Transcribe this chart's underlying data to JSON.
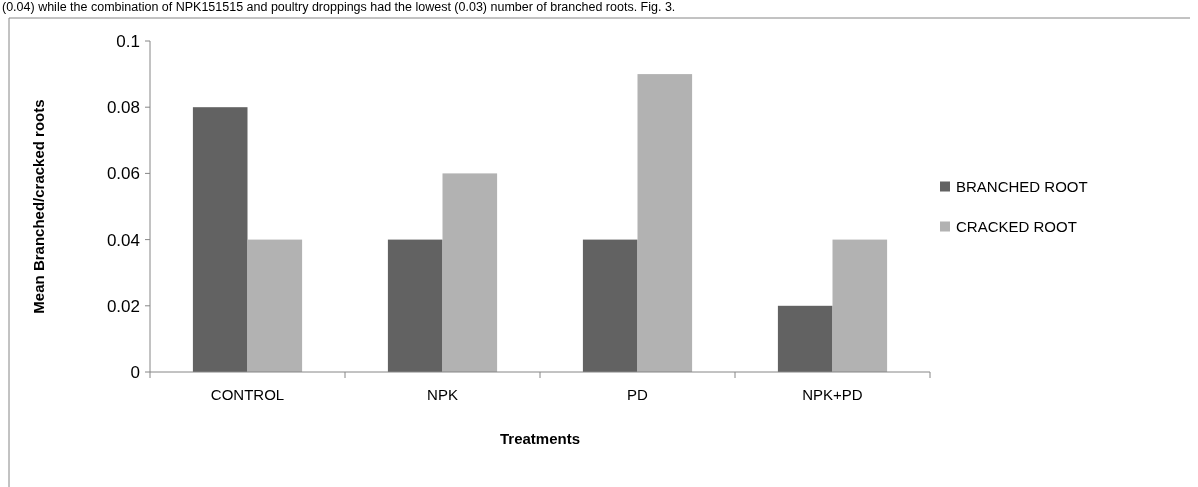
{
  "chart_data": {
    "type": "bar",
    "xlabel": "Treatments",
    "ylabel": "Mean Branched/cracked roots",
    "annotations": [
      "(0.04) while the combination of NPK151515 and poultry droppings had the lowest (0.03) number of branched roots. Fig. 3."
    ],
    "categories": [
      "CONTROL",
      "NPK",
      "PD",
      "NPK+PD"
    ],
    "series": [
      {
        "name": "BRANCHED ROOT",
        "color": "#626262",
        "values": [
          0.08,
          0.04,
          0.04,
          0.02
        ]
      },
      {
        "name": "CRACKED ROOT",
        "color": "#b2b2b2",
        "values": [
          0.04,
          0.06,
          0.09,
          0.04
        ]
      }
    ],
    "ylim": [
      0,
      0.1
    ],
    "yticks": [
      0,
      0.02,
      0.04,
      0.06,
      0.08,
      0.1
    ],
    "grid": false,
    "legend": "right"
  }
}
